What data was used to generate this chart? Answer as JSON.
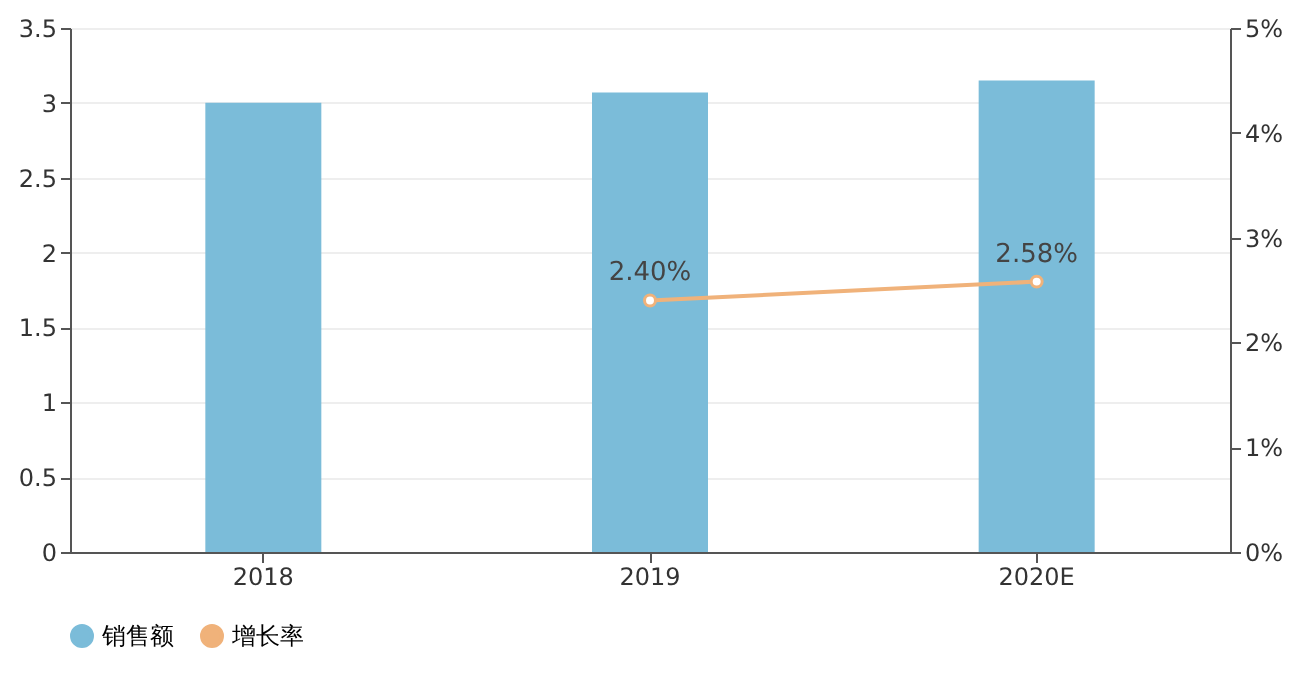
{
  "chart_data": {
    "type": "bar",
    "categories": [
      "2018",
      "2019",
      "2020E"
    ],
    "series": [
      {
        "name": "销售额",
        "color": "#7bbcd9",
        "values": [
          3.0,
          3.07,
          3.15
        ]
      },
      {
        "name": "增长率",
        "type": "line",
        "axis": "y2",
        "color": "#f0b27a",
        "marker": "circle",
        "values": [
          null,
          2.4,
          2.58
        ],
        "value_labels": [
          null,
          "2.40%",
          "2.58%"
        ]
      }
    ],
    "ylim": [
      0,
      3.5
    ],
    "yticks": [
      0,
      0.5,
      1,
      1.5,
      2,
      2.5,
      3,
      3.5
    ],
    "y2lim": [
      0,
      5
    ],
    "y2ticks": [
      {
        "value": 0,
        "label": "0%"
      },
      {
        "value": 1,
        "label": "1%"
      },
      {
        "value": 2,
        "label": "2%"
      },
      {
        "value": 3,
        "label": "3%"
      },
      {
        "value": 4,
        "label": "4%"
      },
      {
        "value": 5,
        "label": "5%"
      }
    ],
    "grid": "y",
    "legend": "bottom"
  }
}
